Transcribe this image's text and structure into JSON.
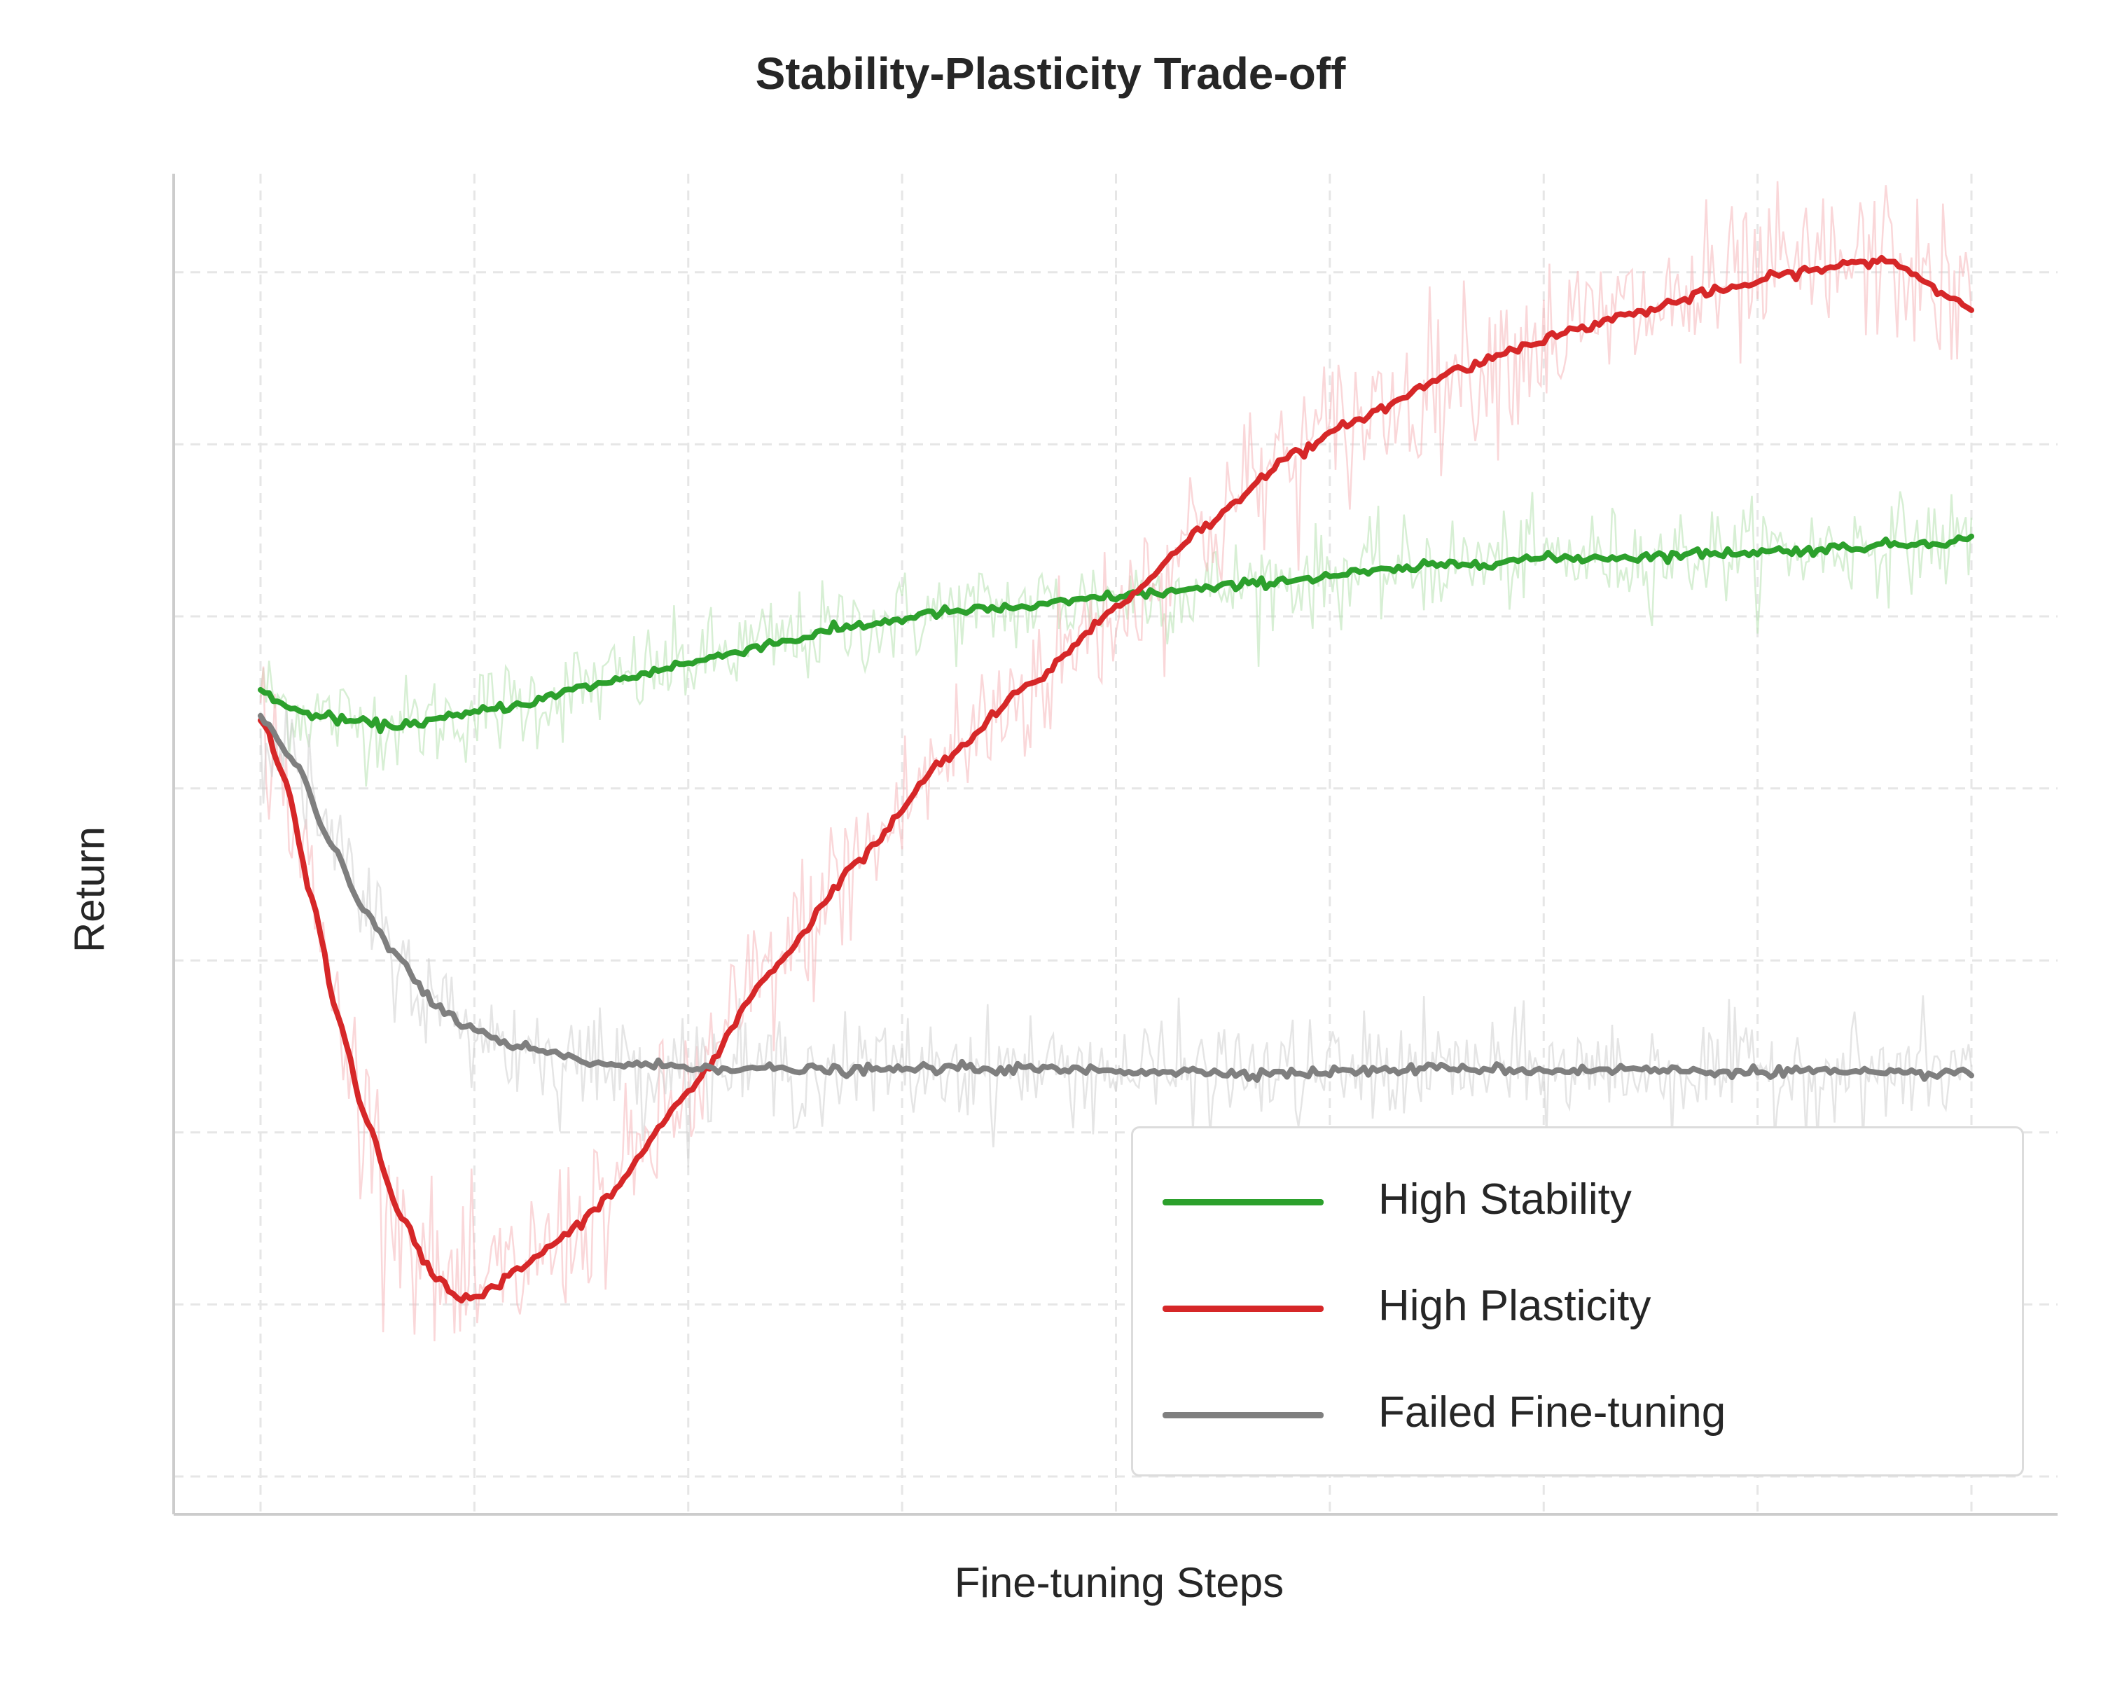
{
  "title": "Stability-Plasticity Trade-off",
  "chart_data": {
    "type": "line",
    "title": "Stability-Plasticity Trade-off",
    "xlabel": "Fine-tuning Steps",
    "ylabel": "Return",
    "xticks_shown": false,
    "yticks_shown": false,
    "xlim": [
      -0.05,
      1.05
    ],
    "ylim": [
      0.0,
      1.0
    ],
    "grid": true,
    "grid_style": "dashed",
    "legend_position": "lower right",
    "series": [
      {
        "name": "High Stability",
        "color": "#2ca02c",
        "x": [
          0.0,
          0.02,
          0.05,
          0.075,
          0.1,
          0.15,
          0.2,
          0.25,
          0.3,
          0.35,
          0.4,
          0.45,
          0.5,
          0.55,
          0.6,
          0.65,
          0.7,
          0.75,
          0.8,
          0.85,
          0.9,
          0.95,
          1.0
        ],
        "y": [
          0.615,
          0.599,
          0.592,
          0.588,
          0.592,
          0.604,
          0.62,
          0.635,
          0.65,
          0.663,
          0.673,
          0.677,
          0.685,
          0.69,
          0.697,
          0.703,
          0.709,
          0.713,
          0.714,
          0.717,
          0.719,
          0.723,
          0.727
        ]
      },
      {
        "name": "High Plasticity",
        "color": "#d62728",
        "x": [
          0.0,
          0.015,
          0.03,
          0.045,
          0.06,
          0.08,
          0.1,
          0.115,
          0.13,
          0.15,
          0.18,
          0.2,
          0.25,
          0.3,
          0.35,
          0.4,
          0.45,
          0.5,
          0.55,
          0.6,
          0.65,
          0.7,
          0.75,
          0.8,
          0.85,
          0.9,
          0.95,
          1.0
        ],
        "y": [
          0.595,
          0.545,
          0.46,
          0.372,
          0.302,
          0.226,
          0.181,
          0.162,
          0.164,
          0.182,
          0.209,
          0.233,
          0.314,
          0.408,
          0.488,
          0.563,
          0.619,
          0.676,
          0.735,
          0.788,
          0.822,
          0.854,
          0.877,
          0.895,
          0.912,
          0.927,
          0.936,
          0.9
        ]
      },
      {
        "name": "Failed Fine-tuning",
        "color": "#7f7f7f",
        "x": [
          0.0,
          0.02,
          0.04,
          0.06,
          0.08,
          0.1,
          0.12,
          0.15,
          0.2,
          0.25,
          0.3,
          0.35,
          0.4,
          0.45,
          0.5,
          0.55,
          0.6,
          0.65,
          0.7,
          0.75,
          0.8,
          0.85,
          0.9,
          0.95,
          1.0
        ],
        "y": [
          0.595,
          0.56,
          0.503,
          0.452,
          0.417,
          0.381,
          0.364,
          0.348,
          0.336,
          0.334,
          0.332,
          0.331,
          0.333,
          0.332,
          0.331,
          0.33,
          0.329,
          0.331,
          0.333,
          0.331,
          0.332,
          0.33,
          0.331,
          0.328,
          0.33
        ]
      }
    ]
  }
}
